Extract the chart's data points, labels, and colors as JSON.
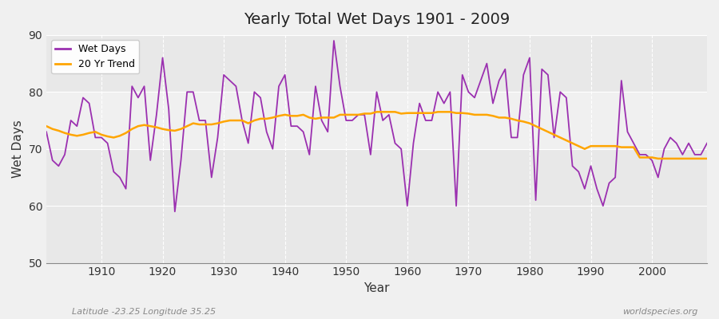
{
  "title": "Yearly Total Wet Days 1901 - 2009",
  "xlabel": "Year",
  "ylabel": "Wet Days",
  "bottom_left_label": "Latitude -23.25 Longitude 35.25",
  "bottom_right_label": "worldspecies.org",
  "ylim": [
    50,
    90
  ],
  "yticks": [
    50,
    60,
    70,
    80,
    90
  ],
  "xlim": [
    1901,
    2009
  ],
  "xticks": [
    1910,
    1920,
    1930,
    1940,
    1950,
    1960,
    1970,
    1980,
    1990,
    2000
  ],
  "wet_days_color": "#9B30B0",
  "trend_color": "#FFA500",
  "background_color": "#F0F0F0",
  "plot_bg_color": "#E8E8E8",
  "band_color": "#DCDCDC",
  "wet_days": {
    "1901": 73,
    "1902": 68,
    "1903": 67,
    "1904": 69,
    "1905": 75,
    "1906": 74,
    "1907": 79,
    "1908": 78,
    "1909": 72,
    "1910": 72,
    "1911": 71,
    "1912": 66,
    "1913": 65,
    "1914": 63,
    "1915": 81,
    "1916": 79,
    "1917": 81,
    "1918": 68,
    "1919": 76,
    "1920": 86,
    "1921": 77,
    "1922": 59,
    "1923": 68,
    "1924": 80,
    "1925": 80,
    "1926": 75,
    "1927": 75,
    "1928": 65,
    "1929": 72,
    "1930": 83,
    "1931": 82,
    "1932": 81,
    "1933": 75,
    "1934": 71,
    "1935": 80,
    "1936": 79,
    "1937": 73,
    "1938": 70,
    "1939": 81,
    "1940": 83,
    "1941": 74,
    "1942": 74,
    "1943": 73,
    "1944": 69,
    "1945": 81,
    "1946": 75,
    "1947": 73,
    "1948": 89,
    "1949": 81,
    "1950": 75,
    "1951": 75,
    "1952": 76,
    "1953": 76,
    "1954": 69,
    "1955": 80,
    "1956": 75,
    "1957": 76,
    "1958": 71,
    "1959": 70,
    "1960": 60,
    "1961": 71,
    "1962": 78,
    "1963": 75,
    "1964": 75,
    "1965": 80,
    "1966": 78,
    "1967": 80,
    "1968": 60,
    "1969": 83,
    "1970": 80,
    "1971": 79,
    "1972": 82,
    "1973": 85,
    "1974": 78,
    "1975": 82,
    "1976": 84,
    "1977": 72,
    "1978": 72,
    "1979": 83,
    "1980": 86,
    "1981": 61,
    "1982": 84,
    "1983": 83,
    "1984": 72,
    "1985": 80,
    "1986": 79,
    "1987": 67,
    "1988": 66,
    "1989": 63,
    "1990": 67,
    "1991": 63,
    "1992": 60,
    "1993": 64,
    "1994": 65,
    "1995": 82,
    "1996": 73,
    "1997": 71,
    "1998": 69,
    "1999": 69,
    "2000": 68,
    "2001": 65,
    "2002": 70,
    "2003": 72,
    "2004": 71,
    "2005": 69,
    "2006": 71,
    "2007": 69,
    "2008": 69,
    "2009": 71
  },
  "trend": {
    "1901": 74.0,
    "1902": 73.5,
    "1903": 73.2,
    "1904": 72.8,
    "1905": 72.5,
    "1906": 72.3,
    "1907": 72.5,
    "1908": 72.8,
    "1909": 73.0,
    "1910": 72.5,
    "1911": 72.2,
    "1912": 72.0,
    "1913": 72.3,
    "1914": 72.8,
    "1915": 73.5,
    "1916": 74.0,
    "1917": 74.2,
    "1918": 74.0,
    "1919": 73.8,
    "1920": 73.5,
    "1921": 73.3,
    "1922": 73.2,
    "1923": 73.5,
    "1924": 74.0,
    "1925": 74.5,
    "1926": 74.3,
    "1927": 74.3,
    "1928": 74.3,
    "1929": 74.5,
    "1930": 74.8,
    "1931": 75.0,
    "1932": 75.0,
    "1933": 75.0,
    "1934": 74.5,
    "1935": 75.0,
    "1936": 75.3,
    "1937": 75.3,
    "1938": 75.5,
    "1939": 75.8,
    "1940": 76.0,
    "1941": 75.8,
    "1942": 75.8,
    "1943": 76.0,
    "1944": 75.5,
    "1945": 75.3,
    "1946": 75.5,
    "1947": 75.5,
    "1948": 75.5,
    "1949": 76.0,
    "1950": 76.0,
    "1951": 76.0,
    "1952": 76.0,
    "1953": 76.2,
    "1954": 76.2,
    "1955": 76.5,
    "1956": 76.5,
    "1957": 76.5,
    "1958": 76.5,
    "1959": 76.2,
    "1960": 76.3,
    "1961": 76.3,
    "1962": 76.3,
    "1963": 76.3,
    "1964": 76.3,
    "1965": 76.5,
    "1966": 76.5,
    "1967": 76.5,
    "1968": 76.3,
    "1969": 76.3,
    "1970": 76.2,
    "1971": 76.0,
    "1972": 76.0,
    "1973": 76.0,
    "1974": 75.8,
    "1975": 75.5,
    "1976": 75.5,
    "1977": 75.3,
    "1978": 75.0,
    "1979": 74.8,
    "1980": 74.5,
    "1981": 74.0,
    "1982": 73.5,
    "1983": 73.0,
    "1984": 72.5,
    "1985": 72.0,
    "1986": 71.5,
    "1987": 71.0,
    "1988": 70.5,
    "1989": 70.0,
    "1990": 70.5,
    "1991": 70.5,
    "1992": 70.5,
    "1993": 70.5,
    "1994": 70.5,
    "1995": 70.3,
    "1996": 70.3,
    "1997": 70.3,
    "1998": 68.5,
    "1999": 68.5,
    "2000": 68.5,
    "2001": 68.3,
    "2002": 68.3,
    "2003": 68.3,
    "2004": 68.3,
    "2005": 68.3,
    "2006": 68.3,
    "2007": 68.3,
    "2008": 68.3,
    "2009": 68.3
  }
}
